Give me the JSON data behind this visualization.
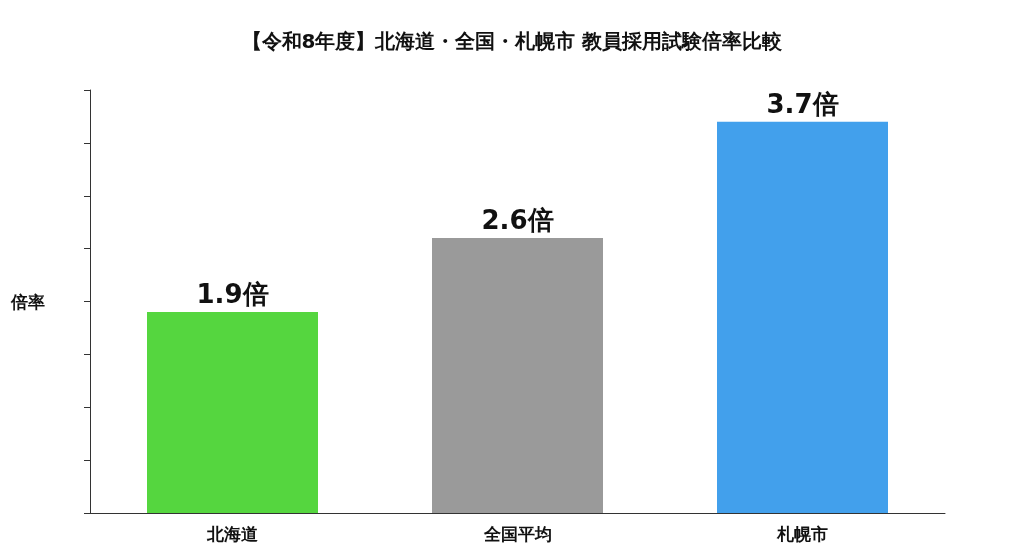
{
  "chart_data": {
    "type": "bar",
    "title": "【令和8年度】北海道・全国・札幌市 教員採用試験倍率比較",
    "ylabel": "倍率",
    "categories": [
      "北海道",
      "全国平均",
      "札幌市"
    ],
    "values": [
      1.9,
      2.6,
      3.7
    ],
    "colors": [
      "#55d63f",
      "#9a9a9a",
      "#42a0ec"
    ],
    "value_labels": [
      "1.9倍",
      "2.6倍",
      "3.7倍"
    ],
    "ylim": [
      0,
      4
    ],
    "yticks": [
      {
        "value": 0,
        "label": null
      },
      {
        "value": 0.5,
        "label": null
      },
      {
        "value": 1,
        "label": null
      },
      {
        "value": 1.5,
        "label": null
      },
      {
        "value": 2,
        "label": null
      },
      {
        "value": 2.5,
        "label": null
      },
      {
        "value": 3,
        "label": null
      },
      {
        "value": 3.5,
        "label": null
      },
      {
        "value": 4,
        "label": null
      }
    ],
    "tick_labels": "x",
    "grid": false
  }
}
